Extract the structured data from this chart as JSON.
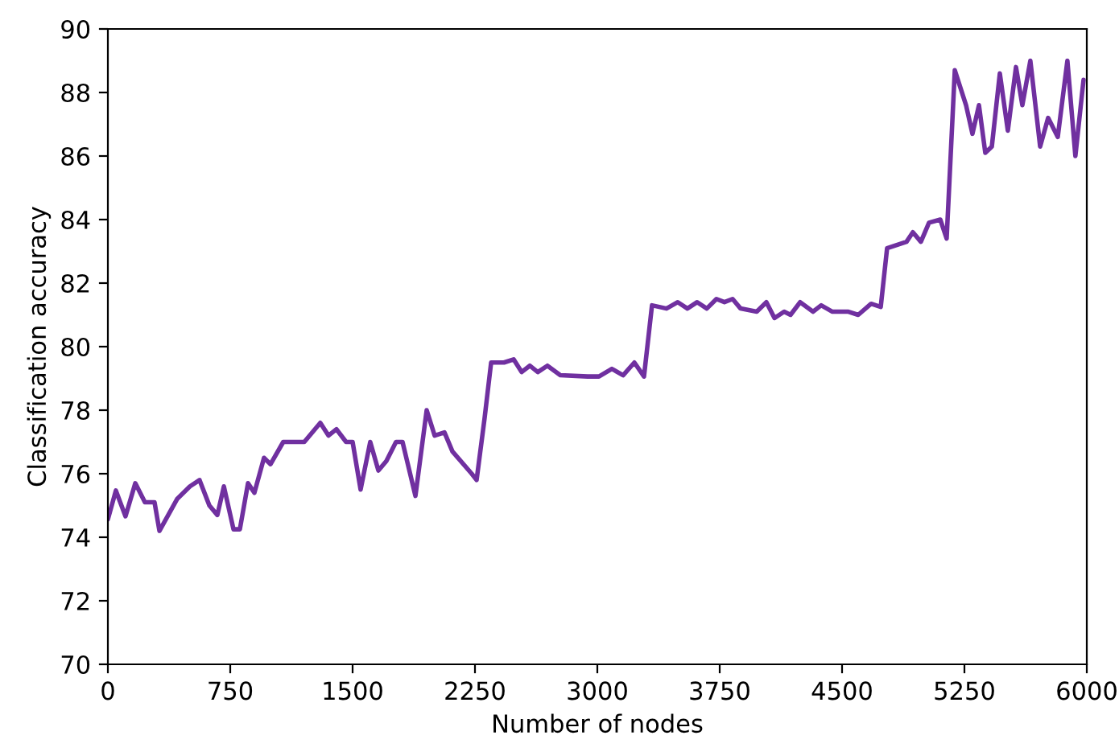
{
  "chart_data": {
    "type": "line",
    "xlabel": "Number of nodes",
    "ylabel": "Classification accuracy",
    "xlim": [
      0,
      6000
    ],
    "xticks": [
      0,
      750,
      1500,
      2250,
      3000,
      3750,
      4500,
      5250,
      6000
    ],
    "ylim": [
      70,
      90
    ],
    "yticks": [
      70,
      72,
      74,
      76,
      78,
      80,
      82,
      84,
      86,
      88,
      90
    ],
    "grid": false,
    "line_style": "solid",
    "marker": "none",
    "x": [
      0,
      49,
      108,
      168,
      227,
      286,
      316,
      424,
      503,
      562,
      622,
      671,
      711,
      770,
      809,
      859,
      898,
      957,
      997,
      1075,
      1204,
      1302,
      1352,
      1401,
      1460,
      1500,
      1549,
      1608,
      1658,
      1707,
      1766,
      1806,
      1885,
      1954,
      2003,
      2063,
      2112,
      2230,
      2260,
      2309,
      2349,
      2428,
      2487,
      2536,
      2586,
      2635,
      2694,
      2773,
      2941,
      3010,
      3089,
      3158,
      3227,
      3286,
      3335,
      3424,
      3493,
      3552,
      3612,
      3671,
      3730,
      3779,
      3829,
      3878,
      3977,
      4036,
      4086,
      4145,
      4184,
      4243,
      4322,
      4372,
      4441,
      4539,
      4599,
      4678,
      4737,
      4776,
      4895,
      4934,
      4983,
      5033,
      5102,
      5141,
      5191,
      5260,
      5299,
      5339,
      5378,
      5418,
      5467,
      5516,
      5566,
      5605,
      5654,
      5714,
      5763,
      5822,
      5881,
      5930,
      5980
    ],
    "series": [
      {
        "color": "#7030a0",
        "values": [
          74.56,
          75.47,
          74.66,
          75.7,
          75.1,
          75.1,
          74.2,
          75.2,
          75.6,
          75.8,
          75.0,
          74.7,
          75.6,
          74.25,
          74.25,
          75.7,
          75.4,
          76.5,
          76.3,
          77.0,
          77.0,
          77.6,
          77.2,
          77.4,
          77.0,
          77.0,
          75.5,
          77.0,
          76.1,
          76.4,
          77.0,
          77.0,
          75.3,
          78.0,
          77.2,
          77.3,
          76.7,
          76.0,
          75.8,
          77.75,
          79.5,
          79.5,
          79.6,
          79.2,
          79.4,
          79.2,
          79.4,
          79.1,
          79.06,
          79.06,
          79.3,
          79.1,
          79.5,
          79.06,
          81.3,
          81.2,
          81.4,
          81.2,
          81.4,
          81.2,
          81.5,
          81.4,
          81.5,
          81.2,
          81.1,
          81.4,
          80.9,
          81.1,
          81.0,
          81.4,
          81.1,
          81.3,
          81.1,
          81.1,
          81.0,
          81.35,
          81.25,
          83.1,
          83.3,
          83.6,
          83.3,
          83.9,
          84.0,
          83.4,
          88.7,
          87.6,
          86.7,
          87.6,
          86.1,
          86.3,
          88.6,
          86.8,
          88.8,
          87.6,
          89.0,
          86.3,
          87.2,
          86.6,
          89.0,
          86.0,
          88.4
        ]
      }
    ]
  }
}
